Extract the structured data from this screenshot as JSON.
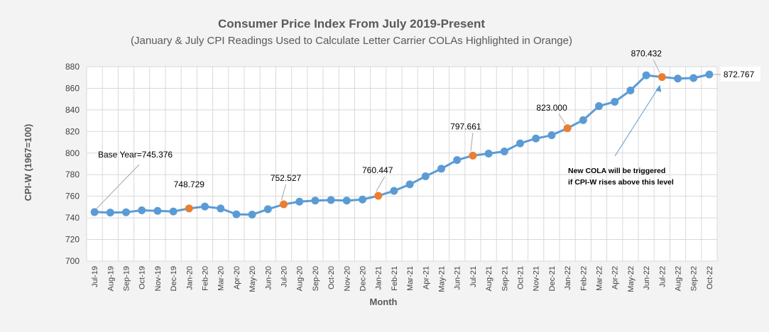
{
  "chart_data": {
    "type": "line",
    "title": "Consumer Price Index From July 2019-Present",
    "subtitle": "(January & July CPI Readings Used to Calculate Letter Carrier COLAs Highlighted in Orange)",
    "xlabel": "Month",
    "ylabel": "CPI-W (1967=100)",
    "ylim": [
      700,
      880
    ],
    "yticks": [
      700,
      720,
      740,
      760,
      780,
      800,
      820,
      840,
      860,
      880
    ],
    "grid": true,
    "categories": [
      "Jul-19",
      "Aug-19",
      "Sep-19",
      "Oct-19",
      "Nov-19",
      "Dec-19",
      "Jan-20",
      "Feb-20",
      "Mar-20",
      "Apr-20",
      "May-20",
      "Jun-20",
      "Jul-20",
      "Aug-20",
      "Sep-20",
      "Oct-20",
      "Nov-20",
      "Dec-20",
      "Jan-21",
      "Feb-21",
      "Mar-21",
      "Apr-21",
      "May-21",
      "Jun-21",
      "Jul-21",
      "Aug-21",
      "Sep-21",
      "Oct-21",
      "Nov-21",
      "Dec-21",
      "Jan-22",
      "Feb-22",
      "Mar-22",
      "Apr-22",
      "May-22",
      "Jun-22",
      "Jul-22",
      "Aug-22",
      "Sep-22",
      "Oct-22"
    ],
    "series": [
      {
        "color": "#5b9bd5",
        "highlight_color": "#ed7d31",
        "values": [
          745.376,
          744.9,
          745.2,
          747.0,
          746.5,
          745.9,
          748.729,
          750.5,
          748.7,
          743.3,
          743.0,
          748.0,
          752.527,
          755.0,
          756.0,
          756.5,
          756.0,
          757.0,
          760.447,
          765.0,
          771.0,
          778.5,
          785.5,
          793.5,
          797.661,
          799.5,
          801.5,
          809.0,
          813.5,
          816.5,
          823.0,
          830.5,
          843.5,
          847.5,
          858.0,
          872.0,
          870.432,
          869.0,
          869.5,
          872.767
        ],
        "highlighted_indices": [
          6,
          12,
          18,
          24,
          30,
          36
        ]
      }
    ],
    "data_labels": [
      {
        "index": 6,
        "text": "748.729"
      },
      {
        "index": 12,
        "text": "752.527"
      },
      {
        "index": 18,
        "text": "760.447"
      },
      {
        "index": 24,
        "text": "797.661"
      },
      {
        "index": 30,
        "text": "823.000"
      },
      {
        "index": 36,
        "text": "870.432"
      },
      {
        "index": 39,
        "text": "872.767"
      }
    ],
    "annotations": [
      {
        "text": "Base Year=745.376",
        "index": 0
      },
      {
        "lines": [
          "New COLA will be triggered",
          "if CPI-W rises above this level"
        ],
        "index": 36
      }
    ]
  }
}
